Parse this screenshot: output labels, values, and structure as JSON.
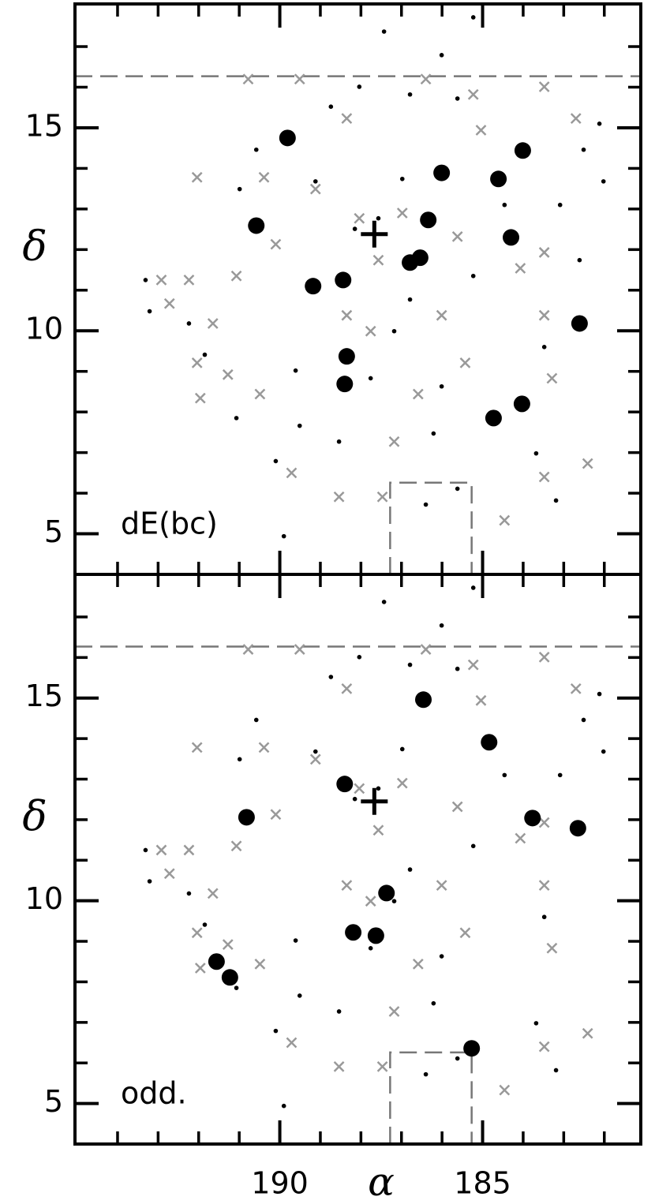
{
  "chart_data": [
    {
      "type": "scatter",
      "panel_label": "dE(bc)",
      "y_label": "δ",
      "xlim": [
        195.05,
        181.1
      ],
      "ylim": [
        4.0,
        18.05
      ],
      "xticks": [
        190,
        185
      ],
      "xtick_labels": false,
      "xticks_minor": [
        194,
        193,
        192,
        191,
        189,
        188,
        187,
        186,
        184,
        183,
        182
      ],
      "yticks": [
        5,
        10,
        15
      ],
      "yticks_minor": [
        6,
        7,
        8,
        9,
        11,
        12,
        13,
        14,
        16,
        17
      ],
      "dashed_hline": 16.27,
      "dashed_path": {
        "x": [
          187.28,
          187.28,
          185.27,
          185.27
        ],
        "y": [
          4.0,
          6.26,
          6.26,
          4.0
        ]
      },
      "series": [
        {
          "marker": "cross",
          "color": "#999999",
          "x": [
            192.92,
            192.24,
            192.72,
            192.04,
            191.65,
            191.96,
            191.28,
            190.49,
            189.71,
            188.54,
            187.47,
            184.46,
            182.41,
            183.48,
            183.29,
            183.48,
            183.48,
            182.7,
            183.48,
            185.04,
            185.23,
            186.4,
            188.35,
            189.51,
            190.78,
            190.39,
            192.04,
            191.07,
            190.1,
            189.12,
            188.04,
            187.57,
            186.98,
            188.35,
            187.76,
            186.01,
            185.43,
            186.59,
            187.18,
            185.62,
            184.07
          ],
          "values": [
            11.25,
            11.25,
            10.67,
            9.21,
            10.18,
            8.34,
            8.92,
            8.44,
            6.5,
            5.91,
            5.91,
            5.33,
            6.73,
            6.4,
            8.83,
            10.38,
            11.93,
            15.23,
            16.01,
            14.94,
            15.82,
            16.2,
            15.23,
            16.2,
            16.2,
            13.78,
            13.78,
            11.35,
            12.13,
            13.49,
            12.77,
            11.74,
            12.9,
            10.38,
            9.99,
            10.38,
            9.21,
            8.44,
            7.27,
            12.32,
            11.54
          ]
        },
        {
          "marker": "dot",
          "color": "#000000",
          "x": [
            193.31,
            193.21,
            187.43,
            185.23,
            186.01,
            188.04,
            185.62,
            182.12,
            182.51,
            182.02,
            183.09,
            182.61,
            183.48,
            183.68,
            183.19,
            186.4,
            185.62,
            189.9,
            190.1,
            191.07,
            191.85,
            192.24,
            190.99,
            190.58,
            188.74,
            186.98,
            187.57,
            188.15,
            186.79,
            187.18,
            187.76,
            186.01,
            186.21,
            188.54,
            189.51,
            185.23,
            184.46,
            189.12,
            189.61,
            186.79
          ],
          "values": [
            11.25,
            10.48,
            17.37,
            17.72,
            16.79,
            16.01,
            15.72,
            15.1,
            14.46,
            13.68,
            13.1,
            11.74,
            9.6,
            6.98,
            5.82,
            5.72,
            6.11,
            4.94,
            6.79,
            7.85,
            9.41,
            10.18,
            13.49,
            14.46,
            15.52,
            13.74,
            12.77,
            12.51,
            10.77,
            9.99,
            8.83,
            8.63,
            7.47,
            7.27,
            7.66,
            11.35,
            13.1,
            13.68,
            9.02,
            15.82
          ]
        },
        {
          "marker": "dot-large",
          "color": "#000000",
          "x": [
            189.81,
            190.58,
            189.18,
            188.44,
            188.35,
            188.4,
            186.79,
            186.54,
            186.34,
            186.01,
            184.61,
            184.01,
            184.3,
            182.61,
            184.03,
            184.73
          ],
          "values": [
            14.75,
            12.59,
            11.1,
            11.25,
            9.37,
            8.69,
            11.68,
            11.8,
            12.73,
            13.89,
            13.74,
            14.44,
            12.3,
            10.18,
            8.2,
            7.85
          ]
        },
        {
          "marker": "plus",
          "color": "#000000",
          "x": [
            187.67
          ],
          "values": [
            12.38
          ]
        }
      ]
    },
    {
      "type": "scatter",
      "panel_label": "odd.",
      "y_label": "δ",
      "x_label": "α",
      "xlim": [
        195.05,
        181.1
      ],
      "ylim": [
        4.0,
        18.05
      ],
      "xticks": [
        190,
        185
      ],
      "xtick_labels": true,
      "xticks_minor": [
        194,
        193,
        192,
        191,
        189,
        188,
        187,
        186,
        184,
        183,
        182
      ],
      "yticks": [
        5,
        10,
        15
      ],
      "yticks_minor": [
        6,
        7,
        8,
        9,
        11,
        12,
        13,
        14,
        16,
        17
      ],
      "dashed_hline": 16.27,
      "dashed_path": {
        "x": [
          187.28,
          187.28,
          185.27,
          185.27
        ],
        "y": [
          4.0,
          6.26,
          6.26,
          4.0
        ]
      },
      "series": [
        {
          "marker": "cross",
          "color": "#999999",
          "x": [
            192.92,
            192.24,
            192.72,
            192.04,
            191.65,
            191.96,
            191.28,
            190.49,
            189.71,
            188.54,
            187.47,
            184.46,
            182.41,
            183.48,
            183.29,
            183.48,
            183.48,
            182.7,
            183.48,
            185.04,
            185.23,
            186.4,
            188.35,
            189.51,
            190.78,
            190.39,
            192.04,
            191.07,
            190.1,
            189.12,
            188.04,
            187.57,
            186.98,
            188.35,
            187.76,
            186.01,
            185.43,
            186.59,
            187.18,
            185.62,
            184.07
          ],
          "values": [
            11.25,
            11.25,
            10.67,
            9.21,
            10.18,
            8.34,
            8.92,
            8.44,
            6.5,
            5.91,
            5.91,
            5.33,
            6.73,
            6.4,
            8.83,
            10.38,
            11.93,
            15.23,
            16.01,
            14.94,
            15.82,
            16.2,
            15.23,
            16.2,
            16.2,
            13.78,
            13.78,
            11.35,
            12.13,
            13.49,
            12.77,
            11.74,
            12.9,
            10.38,
            9.99,
            10.38,
            9.21,
            8.44,
            7.27,
            12.32,
            11.54
          ]
        },
        {
          "marker": "dot",
          "color": "#000000",
          "x": [
            193.31,
            193.21,
            187.43,
            185.23,
            186.01,
            188.04,
            185.62,
            182.12,
            182.51,
            182.02,
            183.09,
            182.61,
            183.48,
            183.68,
            183.19,
            186.4,
            185.62,
            189.9,
            190.1,
            191.07,
            191.85,
            192.24,
            190.99,
            190.58,
            188.74,
            186.98,
            187.57,
            188.15,
            186.79,
            187.18,
            187.76,
            186.01,
            186.21,
            188.54,
            189.51,
            185.23,
            184.46,
            189.12,
            189.61,
            186.79
          ],
          "values": [
            11.25,
            10.48,
            17.37,
            17.72,
            16.79,
            16.01,
            15.72,
            15.1,
            14.46,
            13.68,
            13.1,
            11.74,
            9.6,
            6.98,
            5.82,
            5.72,
            6.11,
            4.94,
            6.79,
            7.85,
            9.41,
            10.18,
            13.49,
            14.46,
            15.52,
            13.74,
            12.77,
            12.51,
            10.77,
            9.99,
            8.83,
            8.63,
            7.47,
            7.27,
            7.66,
            11.35,
            13.1,
            13.68,
            9.02,
            15.82
          ]
        },
        {
          "marker": "dot-large",
          "color": "#000000",
          "x": [
            186.46,
            184.84,
            188.4,
            190.82,
            183.77,
            182.65,
            187.37,
            188.19,
            187.63,
            191.56,
            191.23,
            185.27
          ],
          "values": [
            14.96,
            13.91,
            12.88,
            12.06,
            12.04,
            11.79,
            10.19,
            9.22,
            9.14,
            8.5,
            8.11,
            6.36
          ]
        },
        {
          "marker": "plus",
          "color": "#000000",
          "x": [
            187.67
          ],
          "values": [
            12.45
          ]
        }
      ]
    }
  ]
}
